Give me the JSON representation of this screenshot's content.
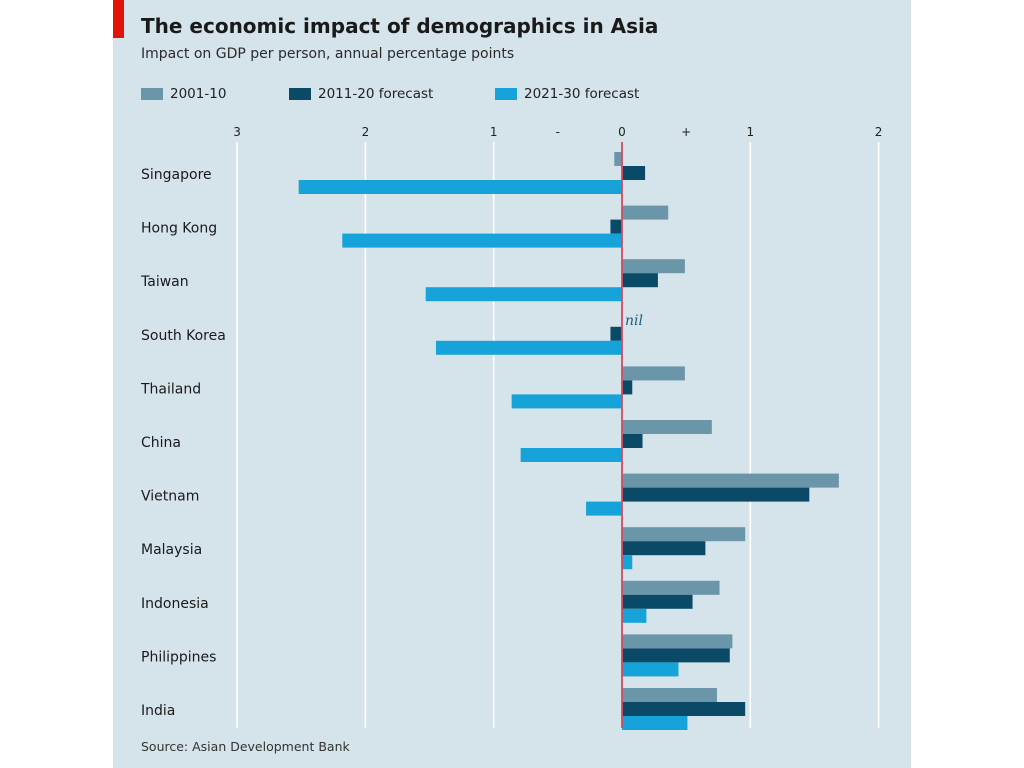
{
  "title": "The economic impact of demographics in Asia",
  "subtitle": "Impact on GDP per person, annual percentage points",
  "source": "Source: Asian Development Bank",
  "colors": {
    "panel": "#d5e3ea",
    "accent": "#e3120b",
    "zero_line": "#d9485f",
    "s1": "#6b95a8",
    "s2": "#0b4a66",
    "s3": "#16a3d9"
  },
  "legend": [
    {
      "label": "2001-10",
      "color": "#6b95a8"
    },
    {
      "label": "2011-20 forecast",
      "color": "#0b4a66"
    },
    {
      "label": "2021-30 forecast",
      "color": "#16a3d9"
    }
  ],
  "chart_data": {
    "type": "bar",
    "orientation": "horizontal",
    "xlim": [
      -3,
      2
    ],
    "ticks": [
      {
        "value": -3,
        "label": "3"
      },
      {
        "value": -2,
        "label": "2"
      },
      {
        "value": -1,
        "label": "1"
      },
      {
        "value": -0.5,
        "label": "-"
      },
      {
        "value": 0,
        "label": "0"
      },
      {
        "value": 0.5,
        "label": "+"
      },
      {
        "value": 1,
        "label": "1"
      },
      {
        "value": 2,
        "label": "2"
      }
    ],
    "grid": true,
    "legend_position": "top",
    "categories": [
      "Singapore",
      "Hong Kong",
      "Taiwan",
      "South Korea",
      "Thailand",
      "China",
      "Vietnam",
      "Malaysia",
      "Indonesia",
      "Philippines",
      "India"
    ],
    "series": [
      {
        "name": "2001-10",
        "values": [
          -0.06,
          0.36,
          0.49,
          0,
          0.49,
          0.7,
          1.69,
          0.96,
          0.76,
          0.86,
          0.74
        ]
      },
      {
        "name": "2011-20 forecast",
        "values": [
          0.18,
          -0.09,
          0.28,
          -0.09,
          0.08,
          0.16,
          1.46,
          0.65,
          0.55,
          0.84,
          0.96
        ]
      },
      {
        "name": "2021-30 forecast",
        "values": [
          -2.52,
          -2.18,
          -1.53,
          -1.45,
          -0.86,
          -0.79,
          -0.28,
          0.08,
          0.19,
          0.44,
          0.51
        ]
      }
    ],
    "annotations": [
      {
        "category": "South Korea",
        "series": "2001-10",
        "text": "nil"
      }
    ]
  }
}
